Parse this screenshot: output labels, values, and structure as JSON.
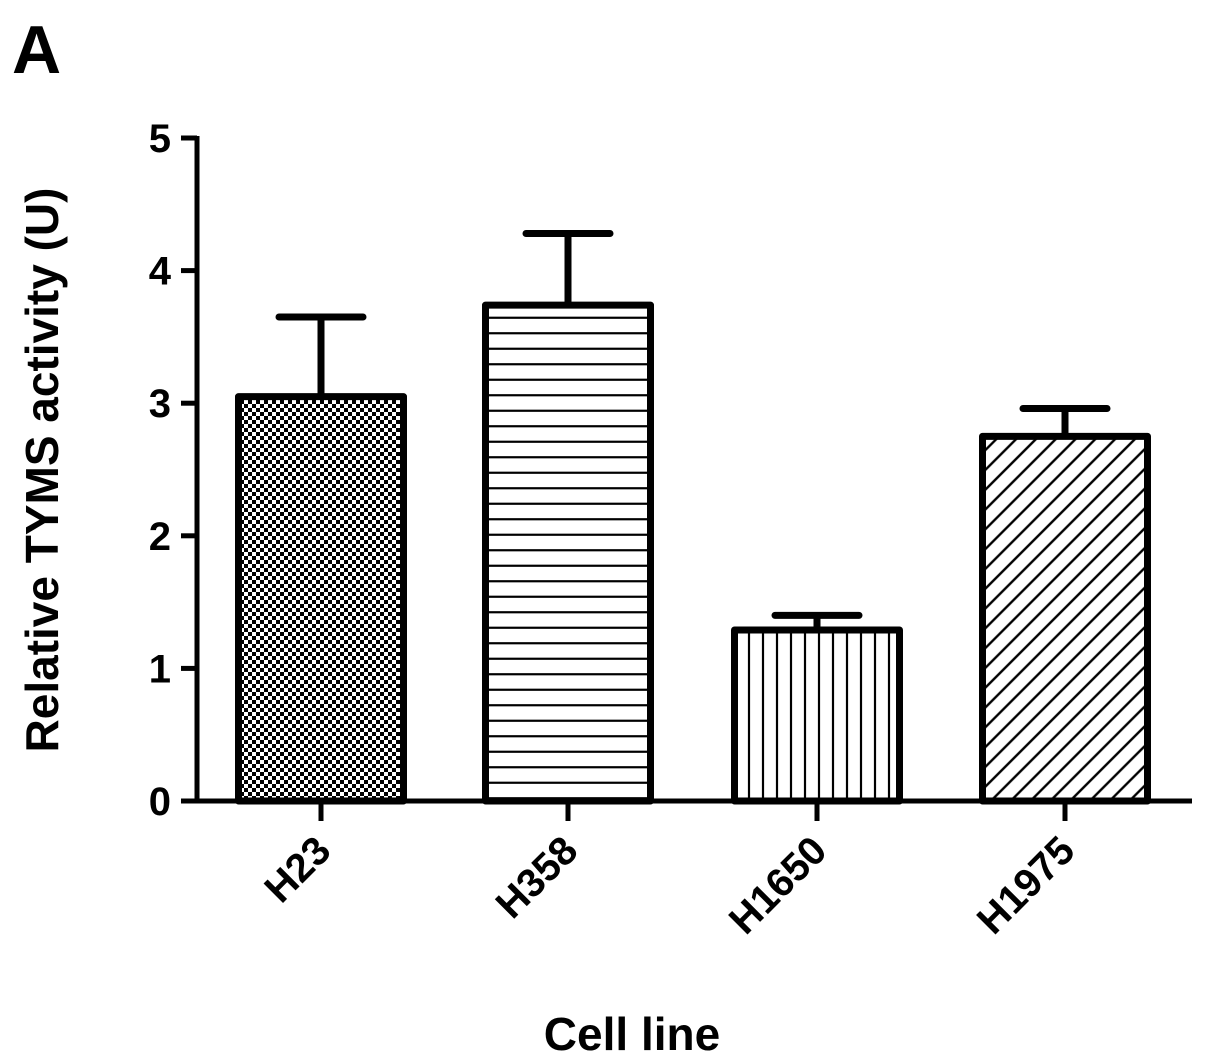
{
  "panel_label": "A",
  "chart_data": {
    "type": "bar",
    "categories": [
      "H23",
      "H358",
      "H1650",
      "H1975"
    ],
    "series": [
      {
        "values": [
          3.05,
          3.74,
          1.29,
          2.75
        ],
        "error": [
          0.6,
          0.54,
          0.11,
          0.21
        ],
        "patterns": [
          "checker",
          "horizontal",
          "vertical",
          "diagonal"
        ]
      }
    ],
    "xlabel": "Cell line",
    "ylabel": "Relative TYMS activity (U)",
    "ylim": [
      0,
      5
    ],
    "yticks": [
      "0",
      "1",
      "2",
      "3",
      "4",
      "5"
    ],
    "grid": false,
    "legend": "none",
    "colors": {
      "bar_fill": "#ffffff",
      "stroke": "#000000"
    }
  }
}
